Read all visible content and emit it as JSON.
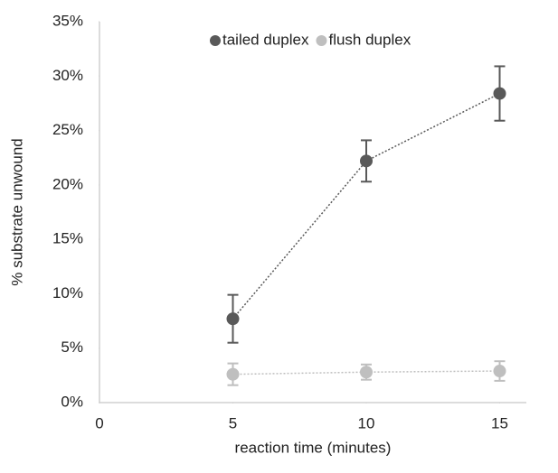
{
  "chart_data": {
    "type": "scatter",
    "x_label": "reaction time (minutes)",
    "y_label": "% substrate unwound",
    "x": [
      5,
      10,
      15
    ],
    "series": [
      {
        "name": "tailed duplex",
        "color": "#595959",
        "values": [
          7.7,
          22.2,
          28.4
        ],
        "errors": [
          2.2,
          1.9,
          2.5
        ]
      },
      {
        "name": "flush duplex",
        "color": "#bfbfbf",
        "values": [
          2.6,
          2.8,
          2.9
        ],
        "errors": [
          1.0,
          0.7,
          0.9
        ]
      }
    ],
    "xlim": [
      0,
      16
    ],
    "xticks": [
      0,
      5,
      10,
      15
    ],
    "ylim": [
      0,
      35
    ],
    "yticks": [
      {
        "value": 0,
        "label": "0%"
      },
      {
        "value": 5,
        "label": "5%"
      },
      {
        "value": 10,
        "label": "10%"
      },
      {
        "value": 15,
        "label": "15%"
      },
      {
        "value": 20,
        "label": "20%"
      },
      {
        "value": 25,
        "label": "25%"
      },
      {
        "value": 30,
        "label": "30%"
      },
      {
        "value": 35,
        "label": "35%"
      }
    ],
    "grid": false,
    "legend": "top"
  }
}
